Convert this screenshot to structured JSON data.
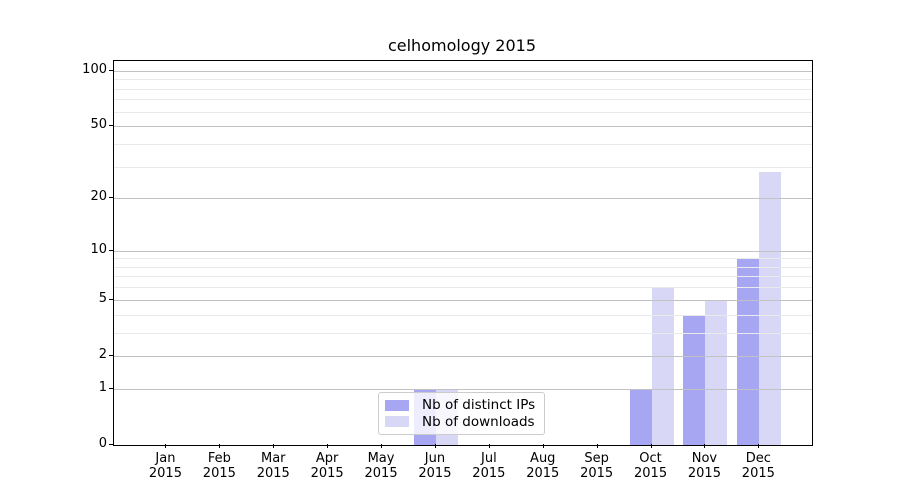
{
  "chart_data": {
    "type": "bar",
    "title": "celhomology 2015",
    "categories": [
      "Jan",
      "Feb",
      "Mar",
      "Apr",
      "May",
      "Jun",
      "Jul",
      "Aug",
      "Sep",
      "Oct",
      "Nov",
      "Dec"
    ],
    "year_label": "2015",
    "series": [
      {
        "name": "Nb of distinct IPs",
        "color": "#a6a6f2",
        "values": [
          0,
          0,
          0,
          0,
          0,
          1,
          0,
          0,
          0,
          1,
          4,
          9
        ]
      },
      {
        "name": "Nb of downloads",
        "color": "#d8d8f6",
        "values": [
          0,
          0,
          0,
          0,
          0,
          1,
          0,
          0,
          0,
          6,
          5,
          28
        ]
      }
    ],
    "yticks": [
      0,
      1,
      2,
      5,
      10,
      20,
      50,
      100
    ],
    "yticks_minor": [
      3,
      4,
      6,
      7,
      8,
      9,
      30,
      40,
      60,
      70,
      80,
      90
    ],
    "scale": "log1p",
    "ylim": [
      0,
      113
    ],
    "xlabel": "",
    "ylabel": "",
    "grid": true,
    "legend_position": "lower center"
  },
  "colors": {
    "grid_major": "#c2c2c2",
    "grid_minor": "#eaeaea",
    "axis": "#000000"
  }
}
